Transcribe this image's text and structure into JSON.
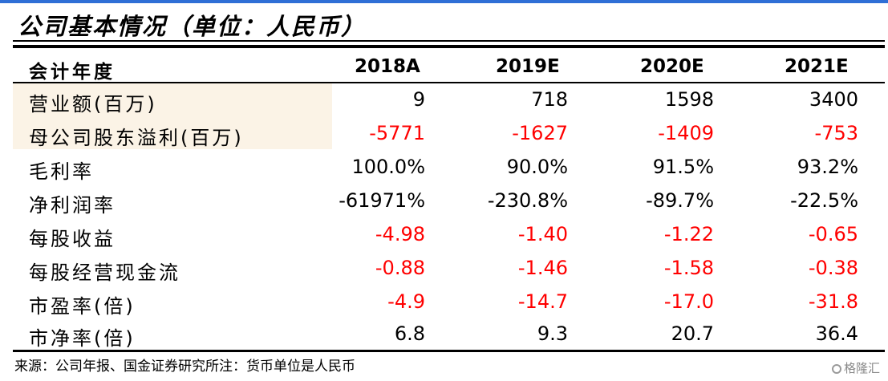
{
  "title": "公司基本情况（单位：人民币）",
  "table": {
    "header": {
      "label": "会计年度",
      "years": [
        "2018A",
        "2019E",
        "2020E",
        "2021E"
      ]
    },
    "rows": [
      {
        "label": "营业额(百万)",
        "values": [
          "9",
          "718",
          "1598",
          "3400"
        ],
        "negative": false
      },
      {
        "label": "母公司股东溢利(百万)",
        "values": [
          "-5771",
          "-1627",
          "-1409",
          "-753"
        ],
        "negative": true
      },
      {
        "label": "毛利率",
        "values": [
          "100.0%",
          "90.0%",
          "91.5%",
          "93.2%"
        ],
        "negative": false
      },
      {
        "label": "净利润率",
        "values": [
          "-61971%",
          "-230.8%",
          "-89.7%",
          "-22.5%"
        ],
        "negative": false
      },
      {
        "label": "每股收益",
        "values": [
          "-4.98",
          "-1.40",
          "-1.22",
          "-0.65"
        ],
        "negative": true
      },
      {
        "label": "每股经营现金流",
        "values": [
          "-0.88",
          "-1.46",
          "-1.58",
          "-0.38"
        ],
        "negative": true
      },
      {
        "label": "市盈率(倍)",
        "values": [
          "-4.9",
          "-14.7",
          "-17.0",
          "-31.8"
        ],
        "negative": true
      },
      {
        "label": "市净率(倍)",
        "values": [
          "6.8",
          "9.3",
          "20.7",
          "36.4"
        ],
        "negative": false
      }
    ]
  },
  "source_note": "来源：公司年报、国金证券研究所注：货币单位是人民币",
  "watermark": "格隆汇",
  "watermark_icon": "gelonghui-logo-icon",
  "colors": {
    "negative": "#ff0000",
    "accent": "#2f6fd6",
    "shade": "#fbf3e6"
  }
}
